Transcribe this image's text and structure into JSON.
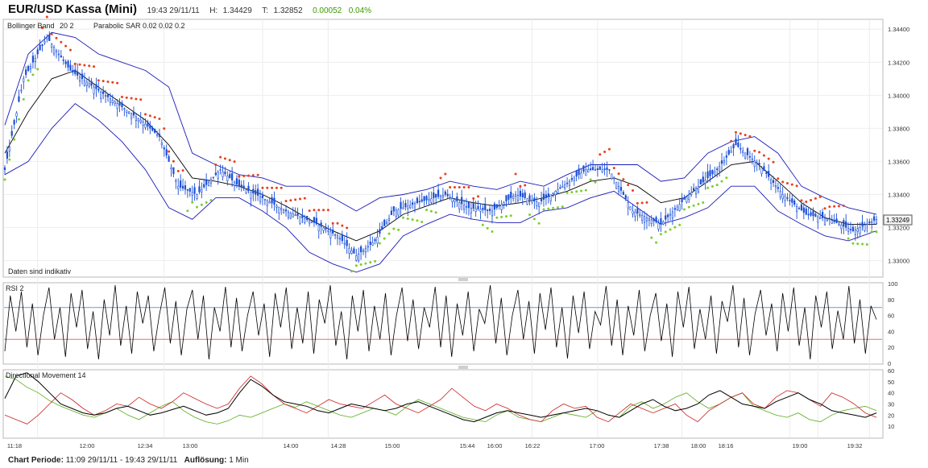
{
  "header": {
    "title": "EUR/USD Kassa (Mini)",
    "time": "19:43 29/11/11",
    "high_label": "H:",
    "high": "1.34429",
    "low_label": "T:",
    "low": "1.32852",
    "change": "0.00052",
    "change_pct": "0.04%"
  },
  "price_panel": {
    "indicator1": "Bollinger Band",
    "indicator1_params": "20  2",
    "indicator2": "Parabolic SAR",
    "indicator2_params": "0.02  0.02  0.2",
    "disclaimer": "Daten sind indikativ",
    "last_price": "1.33249"
  },
  "rsi_panel": {
    "label": "RSI  2"
  },
  "dmi_panel": {
    "label": "Directional Movement  14"
  },
  "footer": {
    "period_label": "Chart Periode:",
    "period": "11:09 29/11/11 - 19:43 29/11/11",
    "resolution_label": "Auflösung:",
    "resolution": "1 Min"
  },
  "colors": {
    "candle": "#1a4fd6",
    "bollinger": "#1a1ab8",
    "sma": "#000000",
    "sar_up": "#7ccf2a",
    "sar_down": "#e8401c",
    "rsi_upper": "#6a9ac8",
    "rsi_lower": "#e07070",
    "di_plus": "#5aaa1a",
    "di_minus": "#cc2020",
    "adx": "#000000"
  },
  "chart_data": [
    {
      "type": "candlestick",
      "title": "EUR/USD Kassa (Mini)",
      "ylim": [
        1.3292,
        1.3444
      ],
      "yticks": [
        "1.33000",
        "1.33200",
        "1.33400",
        "1.33600",
        "1.33800",
        "1.34000",
        "1.34200",
        "1.34400"
      ],
      "xticks": [
        "11:18",
        "12:00",
        "12:34",
        "13:00",
        "14:00",
        "14:28",
        "15:00",
        "15:44",
        "16:00",
        "16:22",
        "17:00",
        "17:38",
        "18:00",
        "18:16",
        "19:00",
        "19:32"
      ],
      "close_path": [
        [
          0,
          1.3355
        ],
        [
          8,
          1.341
        ],
        [
          18,
          1.3435
        ],
        [
          28,
          1.3415
        ],
        [
          38,
          1.3405
        ],
        [
          48,
          1.3395
        ],
        [
          58,
          1.3385
        ],
        [
          66,
          1.3375
        ],
        [
          74,
          1.3345
        ],
        [
          82,
          1.334
        ],
        [
          92,
          1.3355
        ],
        [
          100,
          1.3345
        ],
        [
          110,
          1.3338
        ],
        [
          120,
          1.333
        ],
        [
          132,
          1.3323
        ],
        [
          142,
          1.3315
        ],
        [
          150,
          1.3303
        ],
        [
          158,
          1.3312
        ],
        [
          166,
          1.333
        ],
        [
          176,
          1.3335
        ],
        [
          188,
          1.334
        ],
        [
          198,
          1.3332
        ],
        [
          208,
          1.333
        ],
        [
          218,
          1.334
        ],
        [
          228,
          1.3335
        ],
        [
          238,
          1.3345
        ],
        [
          248,
          1.3355
        ],
        [
          258,
          1.3355
        ],
        [
          268,
          1.333
        ],
        [
          280,
          1.3322
        ],
        [
          292,
          1.334
        ],
        [
          304,
          1.3355
        ],
        [
          312,
          1.337
        ],
        [
          322,
          1.3358
        ],
        [
          332,
          1.334
        ],
        [
          342,
          1.3328
        ],
        [
          352,
          1.3325
        ],
        [
          362,
          1.3318
        ],
        [
          372,
          1.3325
        ]
      ],
      "bollinger_middle": [
        [
          0,
          1.3365
        ],
        [
          10,
          1.339
        ],
        [
          20,
          1.341
        ],
        [
          30,
          1.3415
        ],
        [
          40,
          1.3405
        ],
        [
          50,
          1.3395
        ],
        [
          60,
          1.3385
        ],
        [
          70,
          1.337
        ],
        [
          80,
          1.335
        ],
        [
          90,
          1.3348
        ],
        [
          100,
          1.3345
        ],
        [
          110,
          1.334
        ],
        [
          120,
          1.3333
        ],
        [
          130,
          1.3325
        ],
        [
          140,
          1.3318
        ],
        [
          150,
          1.3312
        ],
        [
          160,
          1.3318
        ],
        [
          170,
          1.3328
        ],
        [
          180,
          1.3333
        ],
        [
          190,
          1.3338
        ],
        [
          200,
          1.3335
        ],
        [
          210,
          1.3333
        ],
        [
          220,
          1.3335
        ],
        [
          230,
          1.3338
        ],
        [
          240,
          1.3342
        ],
        [
          250,
          1.3348
        ],
        [
          260,
          1.335
        ],
        [
          270,
          1.3345
        ],
        [
          280,
          1.3335
        ],
        [
          290,
          1.3338
        ],
        [
          300,
          1.3348
        ],
        [
          310,
          1.3358
        ],
        [
          320,
          1.336
        ],
        [
          330,
          1.3348
        ],
        [
          340,
          1.3335
        ],
        [
          350,
          1.3326
        ],
        [
          360,
          1.3322
        ],
        [
          372,
          1.3322
        ]
      ],
      "bollinger_upper": [
        [
          0,
          1.3382
        ],
        [
          10,
          1.3425
        ],
        [
          20,
          1.3438
        ],
        [
          30,
          1.3435
        ],
        [
          40,
          1.3425
        ],
        [
          50,
          1.342
        ],
        [
          60,
          1.3415
        ],
        [
          70,
          1.3405
        ],
        [
          80,
          1.3365
        ],
        [
          90,
          1.3358
        ],
        [
          100,
          1.3352
        ],
        [
          110,
          1.335
        ],
        [
          120,
          1.3345
        ],
        [
          130,
          1.3345
        ],
        [
          140,
          1.3338
        ],
        [
          150,
          1.333
        ],
        [
          160,
          1.3338
        ],
        [
          170,
          1.334
        ],
        [
          180,
          1.3343
        ],
        [
          190,
          1.3348
        ],
        [
          200,
          1.3345
        ],
        [
          210,
          1.3343
        ],
        [
          220,
          1.3348
        ],
        [
          230,
          1.3345
        ],
        [
          240,
          1.3352
        ],
        [
          250,
          1.3358
        ],
        [
          260,
          1.3358
        ],
        [
          270,
          1.3358
        ],
        [
          280,
          1.3348
        ],
        [
          290,
          1.335
        ],
        [
          300,
          1.3365
        ],
        [
          310,
          1.3372
        ],
        [
          320,
          1.3375
        ],
        [
          330,
          1.3365
        ],
        [
          340,
          1.3345
        ],
        [
          350,
          1.3338
        ],
        [
          360,
          1.3332
        ],
        [
          372,
          1.3328
        ]
      ],
      "bollinger_lower": [
        [
          0,
          1.3352
        ],
        [
          10,
          1.336
        ],
        [
          20,
          1.338
        ],
        [
          30,
          1.3395
        ],
        [
          40,
          1.3385
        ],
        [
          50,
          1.3372
        ],
        [
          60,
          1.3355
        ],
        [
          70,
          1.3332
        ],
        [
          80,
          1.3325
        ],
        [
          90,
          1.3338
        ],
        [
          100,
          1.3338
        ],
        [
          110,
          1.333
        ],
        [
          120,
          1.332
        ],
        [
          130,
          1.3305
        ],
        [
          140,
          1.3298
        ],
        [
          150,
          1.3293
        ],
        [
          160,
          1.3298
        ],
        [
          170,
          1.3315
        ],
        [
          180,
          1.3322
        ],
        [
          190,
          1.3328
        ],
        [
          200,
          1.3325
        ],
        [
          210,
          1.3323
        ],
        [
          220,
          1.3323
        ],
        [
          230,
          1.333
        ],
        [
          240,
          1.3332
        ],
        [
          250,
          1.3338
        ],
        [
          260,
          1.3342
        ],
        [
          270,
          1.3332
        ],
        [
          280,
          1.3322
        ],
        [
          290,
          1.3326
        ],
        [
          300,
          1.3332
        ],
        [
          310,
          1.3345
        ],
        [
          320,
          1.3345
        ],
        [
          330,
          1.333
        ],
        [
          340,
          1.3322
        ],
        [
          350,
          1.3315
        ],
        [
          360,
          1.3312
        ],
        [
          372,
          1.3318
        ]
      ]
    },
    {
      "type": "line",
      "title": "RSI  2",
      "ylim": [
        0,
        100
      ],
      "yticks": [
        0,
        20,
        40,
        60,
        80,
        100
      ],
      "reference_lines": [
        70,
        30
      ],
      "series": [
        {
          "values": [
            15,
            85,
            40,
            90,
            20,
            75,
            10,
            60,
            95,
            30,
            70,
            8,
            88,
            45,
            92,
            18,
            65,
            5,
            80,
            35,
            98,
            22,
            72,
            12,
            90,
            50,
            85,
            15,
            60,
            95,
            25,
            78,
            10,
            68,
            92,
            30,
            85,
            5,
            70,
            40,
            96,
            20,
            82,
            15,
            60,
            90,
            35,
            75,
            8,
            88,
            45,
            95,
            18,
            70,
            25,
            90,
            12,
            80,
            50,
            98,
            22,
            65,
            5,
            85,
            40,
            92,
            15,
            72,
            30,
            88,
            10,
            60,
            95,
            28,
            80,
            18,
            70,
            45,
            96,
            20,
            85,
            8,
            75,
            35,
            90,
            15,
            68,
            50,
            98,
            25,
            82,
            10,
            60,
            92,
            30,
            78,
            12,
            88,
            42,
            95,
            20,
            70,
            6,
            85,
            38,
            90,
            18,
            65,
            48,
            97,
            22,
            80,
            10,
            72,
            35,
            92,
            15,
            60,
            88,
            28,
            75,
            8,
            90,
            45,
            96,
            18,
            68,
            30,
            85,
            12,
            78,
            52,
            98,
            20,
            82,
            10,
            62,
            92,
            35,
            75,
            15,
            88,
            40,
            95,
            22,
            70,
            5,
            85,
            45,
            90,
            18,
            66,
            30,
            97,
            25,
            80,
            12,
            72,
            55
          ]
        }
      ]
    },
    {
      "type": "line",
      "title": "Directional Movement  14",
      "ylim": [
        0,
        60
      ],
      "yticks": [
        10,
        20,
        30,
        40,
        50,
        60
      ],
      "series": [
        {
          "values": [
            55,
            52,
            45,
            40,
            33,
            28,
            24,
            20,
            18,
            22,
            26,
            20,
            16,
            22,
            28,
            32,
            24,
            18,
            14,
            12,
            15,
            20,
            18,
            22,
            26,
            30,
            27,
            32,
            28,
            24,
            20,
            18,
            22,
            26,
            24,
            20,
            28,
            34,
            30,
            26,
            22,
            18,
            16,
            14,
            20,
            24,
            18,
            16,
            14,
            18,
            22,
            20,
            18,
            24,
            20,
            18,
            28,
            32,
            26,
            30,
            36,
            40,
            32,
            26,
            30,
            36,
            40,
            28,
            24,
            20,
            18,
            22,
            16,
            14,
            20,
            24,
            26,
            28,
            24
          ]
        },
        {
          "values": [
            20,
            16,
            12,
            20,
            30,
            40,
            34,
            26,
            20,
            24,
            30,
            28,
            36,
            30,
            26,
            32,
            40,
            35,
            30,
            26,
            30,
            44,
            55,
            48,
            38,
            30,
            26,
            22,
            28,
            34,
            30,
            28,
            26,
            32,
            38,
            30,
            26,
            22,
            28,
            34,
            44,
            36,
            28,
            24,
            30,
            26,
            20,
            16,
            14,
            24,
            30,
            26,
            28,
            18,
            14,
            22,
            30,
            26,
            22,
            26,
            30,
            20,
            14,
            24,
            30,
            36,
            40,
            30,
            26,
            36,
            42,
            40,
            34,
            28,
            40,
            36,
            30,
            22,
            18
          ]
        },
        {
          "values": [
            35,
            55,
            58,
            50,
            40,
            30,
            26,
            22,
            20,
            22,
            26,
            28,
            24,
            20,
            22,
            25,
            28,
            24,
            20,
            22,
            26,
            40,
            52,
            46,
            38,
            32,
            30,
            28,
            24,
            22,
            26,
            30,
            28,
            26,
            24,
            26,
            30,
            32,
            28,
            24,
            20,
            16,
            14,
            18,
            22,
            24,
            22,
            20,
            18,
            20,
            22,
            24,
            26,
            24,
            20,
            18,
            24,
            30,
            34,
            28,
            24,
            26,
            30,
            38,
            42,
            36,
            30,
            28,
            26,
            32,
            36,
            40,
            34,
            30,
            24,
            22,
            20,
            18,
            22
          ]
        }
      ]
    }
  ]
}
